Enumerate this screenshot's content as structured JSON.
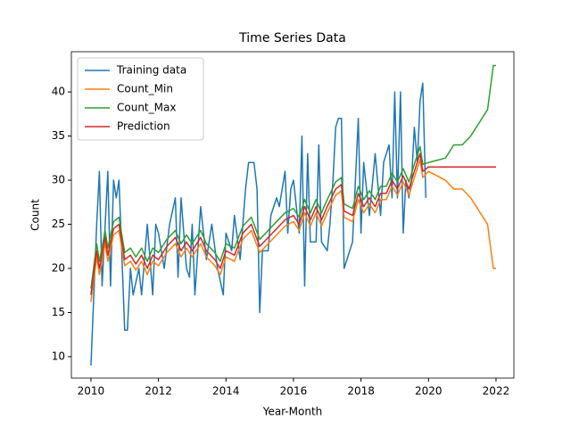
{
  "chart_data": {
    "type": "line",
    "title": "Time Series Data",
    "x_label": "Year-Month",
    "y_label": "Count",
    "xlim": [
      2009.42,
      2022.53
    ],
    "xticks": [
      2010,
      2012,
      2014,
      2016,
      2018,
      2020,
      2022
    ],
    "ylim": [
      7.57,
      44.56
    ],
    "yticks": [
      10,
      15,
      20,
      25,
      30,
      35,
      40
    ],
    "legend": "upper left",
    "grid": false,
    "series": [
      {
        "name": "Training data",
        "color": "#1f77b4",
        "x": [
          2010.0,
          2010.17,
          2010.25,
          2010.33,
          2010.5,
          2010.58,
          2010.67,
          2010.75,
          2010.83,
          2011.0,
          2011.08,
          2011.17,
          2011.25,
          2011.42,
          2011.5,
          2011.67,
          2011.83,
          2011.92,
          2012.0,
          2012.17,
          2012.33,
          2012.5,
          2012.58,
          2012.67,
          2012.83,
          2012.92,
          2013.0,
          2013.08,
          2013.25,
          2013.42,
          2013.58,
          2013.75,
          2013.92,
          2014.0,
          2014.17,
          2014.25,
          2014.42,
          2014.58,
          2014.67,
          2014.83,
          2014.92,
          2015.0,
          2015.08,
          2015.25,
          2015.33,
          2015.5,
          2015.58,
          2015.75,
          2015.83,
          2015.92,
          2016.0,
          2016.17,
          2016.25,
          2016.33,
          2016.42,
          2016.5,
          2016.67,
          2016.75,
          2016.83,
          2017.0,
          2017.08,
          2017.17,
          2017.25,
          2017.33,
          2017.42,
          2017.5,
          2017.75,
          2017.92,
          2018.0,
          2018.08,
          2018.25,
          2018.42,
          2018.58,
          2018.67,
          2018.83,
          2018.92,
          2019.0,
          2019.08,
          2019.17,
          2019.25,
          2019.33,
          2019.42,
          2019.5,
          2019.58,
          2019.67,
          2019.75,
          2019.83,
          2019.92
        ],
        "values": [
          9,
          25,
          31,
          18,
          31,
          18,
          30,
          28,
          30,
          13,
          13,
          20,
          17,
          20,
          17,
          25,
          17,
          25,
          24,
          20,
          25,
          28,
          19,
          28,
          20,
          19,
          25,
          17,
          27,
          21,
          25,
          20,
          17,
          24,
          22,
          26,
          21,
          29,
          32,
          32,
          29,
          15,
          22,
          22,
          26,
          28,
          27,
          31,
          24,
          29,
          30,
          24,
          35,
          18,
          33,
          23,
          23,
          34,
          23,
          22,
          25,
          30,
          36,
          37,
          37,
          20,
          23,
          37,
          24,
          32,
          26,
          33,
          26,
          32,
          34,
          28,
          40,
          28,
          40,
          24,
          30,
          28,
          30,
          36,
          32,
          39,
          41,
          28
        ]
      },
      {
        "name": "Count_Min",
        "color": "#ff7f0e",
        "x": [
          2010.0,
          2010.17,
          2010.25,
          2010.42,
          2010.5,
          2010.67,
          2010.83,
          2011.0,
          2011.17,
          2011.33,
          2011.5,
          2011.67,
          2011.83,
          2012.0,
          2012.25,
          2012.5,
          2012.67,
          2012.83,
          2013.0,
          2013.25,
          2013.42,
          2013.67,
          2013.83,
          2014.0,
          2014.25,
          2014.5,
          2014.75,
          2015.0,
          2015.25,
          2015.5,
          2015.75,
          2016.0,
          2016.17,
          2016.33,
          2016.5,
          2016.67,
          2016.83,
          2017.0,
          2017.25,
          2017.42,
          2017.5,
          2017.75,
          2017.92,
          2018.08,
          2018.25,
          2018.42,
          2018.58,
          2018.75,
          2018.92,
          2019.08,
          2019.25,
          2019.42,
          2019.58,
          2019.75,
          2019.83,
          2020.0,
          2020.5,
          2020.75,
          2021.0,
          2021.25,
          2021.5,
          2021.75,
          2021.92,
          2022.0
        ],
        "values": [
          16.2,
          21.3,
          19.3,
          22.8,
          20.8,
          23.8,
          24.3,
          20.3,
          20.8,
          19.8,
          20.8,
          19.3,
          20.8,
          20.3,
          21.8,
          22.8,
          21.3,
          22.3,
          21.3,
          22.8,
          21.3,
          20.3,
          19.3,
          21.3,
          20.8,
          23.3,
          24.3,
          21.8,
          22.8,
          23.8,
          24.8,
          25.3,
          24.3,
          26.3,
          24.8,
          26.3,
          24.8,
          26.3,
          28.3,
          28.8,
          25.8,
          25.3,
          27.8,
          26.3,
          27.3,
          26.3,
          27.8,
          27.8,
          29.3,
          28.3,
          29.8,
          28.3,
          30.3,
          32.3,
          30.3,
          31,
          30,
          29,
          29,
          28,
          26.5,
          25,
          20,
          20
        ]
      },
      {
        "name": "Count_Max",
        "color": "#2ca02c",
        "x": [
          2010.0,
          2010.17,
          2010.25,
          2010.42,
          2010.5,
          2010.67,
          2010.83,
          2011.0,
          2011.17,
          2011.33,
          2011.5,
          2011.67,
          2011.83,
          2012.0,
          2012.25,
          2012.5,
          2012.67,
          2012.83,
          2013.0,
          2013.25,
          2013.42,
          2013.67,
          2013.83,
          2014.0,
          2014.25,
          2014.5,
          2014.75,
          2015.0,
          2015.25,
          2015.5,
          2015.75,
          2016.0,
          2016.17,
          2016.33,
          2016.5,
          2016.67,
          2016.83,
          2017.0,
          2017.25,
          2017.42,
          2017.5,
          2017.75,
          2017.92,
          2018.08,
          2018.25,
          2018.42,
          2018.58,
          2018.75,
          2018.92,
          2019.08,
          2019.25,
          2019.42,
          2019.58,
          2019.75,
          2019.83,
          2020.0,
          2020.5,
          2020.75,
          2021.0,
          2021.25,
          2021.5,
          2021.75,
          2021.92,
          2022.0
        ],
        "values": [
          17.7,
          22.8,
          20.8,
          24.3,
          22.3,
          25.3,
          25.8,
          21.8,
          22.3,
          21.3,
          22.3,
          20.8,
          22.3,
          21.8,
          23.3,
          24.3,
          22.8,
          23.8,
          22.8,
          24.3,
          22.8,
          21.8,
          20.8,
          22.8,
          22.3,
          24.8,
          25.8,
          23.3,
          24.3,
          25.3,
          26.3,
          26.8,
          25.8,
          27.8,
          26.3,
          27.8,
          26.3,
          27.8,
          29.8,
          30.3,
          27.3,
          26.8,
          29.3,
          27.8,
          28.8,
          27.8,
          29.3,
          29.3,
          30.8,
          29.8,
          31.3,
          29.8,
          31.8,
          33.8,
          31.8,
          32,
          32.5,
          34,
          34,
          35,
          36.5,
          38,
          43,
          43
        ]
      },
      {
        "name": "Prediction",
        "color": "#d62728",
        "x": [
          2010.0,
          2010.17,
          2010.25,
          2010.42,
          2010.5,
          2010.67,
          2010.83,
          2011.0,
          2011.17,
          2011.33,
          2011.5,
          2011.67,
          2011.83,
          2012.0,
          2012.25,
          2012.5,
          2012.67,
          2012.83,
          2013.0,
          2013.25,
          2013.42,
          2013.67,
          2013.83,
          2014.0,
          2014.25,
          2014.5,
          2014.75,
          2015.0,
          2015.25,
          2015.5,
          2015.75,
          2016.0,
          2016.17,
          2016.33,
          2016.5,
          2016.67,
          2016.83,
          2017.0,
          2017.25,
          2017.42,
          2017.5,
          2017.75,
          2017.92,
          2018.08,
          2018.25,
          2018.42,
          2018.58,
          2018.75,
          2018.92,
          2019.08,
          2019.25,
          2019.42,
          2019.58,
          2019.75,
          2019.83,
          2020.0,
          2022.0
        ],
        "values": [
          17,
          22,
          20,
          23.5,
          21.5,
          24.5,
          25,
          21,
          21.5,
          20.5,
          21.5,
          20,
          21.5,
          21,
          22.5,
          23.5,
          22,
          23,
          22,
          23.5,
          22,
          21,
          20,
          22,
          21.5,
          24,
          25,
          22.5,
          23.5,
          24.5,
          25.5,
          26,
          25,
          27,
          25.5,
          27,
          25.5,
          27,
          29,
          29.5,
          26.5,
          26,
          28.5,
          27,
          28,
          27,
          28.5,
          28.5,
          30,
          29,
          30.5,
          29,
          31,
          33,
          31,
          31.5,
          31.5
        ]
      }
    ]
  }
}
